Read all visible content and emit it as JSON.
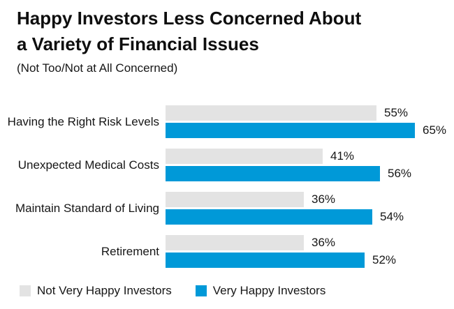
{
  "header": {
    "title_line1": "Happy Investors Less Concerned About",
    "title_line2": "a Variety of Financial Issues",
    "subtitle": "(Not Too/Not at All Concerned)"
  },
  "chart_data": {
    "type": "bar",
    "orientation": "horizontal",
    "title": "Happy Investors Less Concerned About a Variety of Financial Issues",
    "subtitle": "(Not Too/Not at All Concerned)",
    "categories": [
      "Having the Right Risk Levels",
      "Unexpected Medical Costs",
      "Maintain Standard of Living",
      "Retirement"
    ],
    "series": [
      {
        "name": "Not Very Happy Investors",
        "color": "#e3e3e3",
        "values": [
          55,
          41,
          36,
          36
        ]
      },
      {
        "name": "Very Happy Investors",
        "color": "#0099d8",
        "values": [
          65,
          56,
          54,
          52
        ]
      }
    ],
    "value_suffix": "%",
    "value_labels": true,
    "axes_shown": false,
    "grid": false,
    "legend_position": "bottom"
  }
}
